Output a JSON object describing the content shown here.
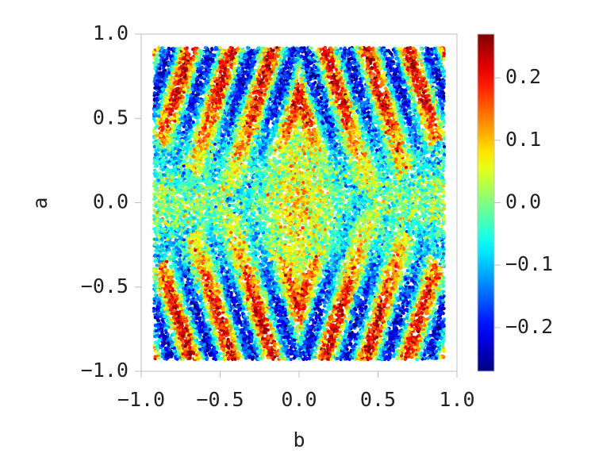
{
  "chart_data": {
    "type": "scatter",
    "title": "",
    "xlabel": "b",
    "ylabel": "a",
    "xlim": [
      -1.0,
      1.0
    ],
    "ylim": [
      -1.0,
      1.0
    ],
    "x_ticks": [
      "−1.0",
      "−0.5",
      "0.0",
      "0.5",
      "1.0"
    ],
    "x_tick_values": [
      -1.0,
      -0.5,
      0.0,
      0.5,
      1.0
    ],
    "y_ticks": [
      "−1.0",
      "−0.5",
      "0.0",
      "0.5",
      "1.0"
    ],
    "y_tick_values": [
      -1.0,
      -0.5,
      0.0,
      0.5,
      1.0
    ],
    "data_extent": {
      "x": [
        -0.92,
        0.92
      ],
      "y": [
        -0.93,
        0.92
      ]
    },
    "point_count": 26000,
    "colormap": "jet",
    "color_range": [
      -0.27,
      0.27
    ],
    "colorbar": {
      "position": "right",
      "ticks": [
        "−0.2",
        "−0.1",
        "0.0",
        "0.1",
        "0.2"
      ],
      "tick_values": [
        -0.2,
        -0.1,
        0.0,
        0.1,
        0.2
      ]
    },
    "grid": false,
    "legend": "none",
    "colors": {
      "axis": "#bfbfbf",
      "text": "#222222",
      "background": "#ffffff"
    }
  }
}
